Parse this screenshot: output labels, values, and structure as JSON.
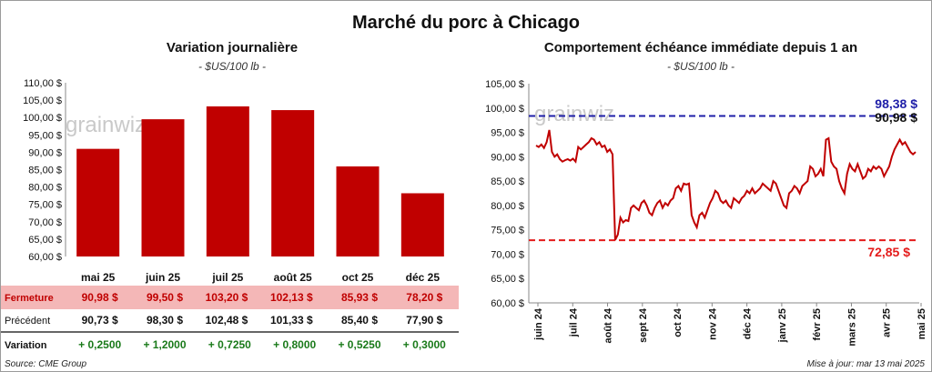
{
  "title": "Marché du porc à Chicago",
  "left": {
    "subtitle": "Variation journalière",
    "unit": "- $US/100 lb -",
    "watermark": "grainwiz",
    "table": {
      "fermeture_label": "Fermeture",
      "precedent_label": "Précédent",
      "variation_label": "Variation",
      "fermeture": [
        "90,98",
        "99,50",
        "103,20",
        "102,13",
        "85,93",
        "78,20"
      ],
      "precedent": [
        "90,73",
        "98,30",
        "102,48",
        "101,33",
        "85,40",
        "77,90"
      ],
      "variation": [
        "+ 0,2500",
        "+ 1,2000",
        "+ 0,7250",
        "+ 0,8000",
        "+ 0,5250",
        "+ 0,3000"
      ],
      "currency": "$"
    }
  },
  "right": {
    "subtitle": "Comportement échéance immédiate depuis 1 an",
    "unit": "- $US/100 lb -",
    "watermark": "grainwiz",
    "high_label": "98,38 $",
    "last_label": "90,98 $",
    "low_label": "72,85 $"
  },
  "footer": {
    "source": "Source: CME Group",
    "updated": "Mise à jour: mar 13 mai 2025"
  },
  "chart_data": [
    {
      "type": "bar",
      "categories": [
        "mai 25",
        "juin 25",
        "juil 25",
        "août 25",
        "oct 25",
        "déc 25"
      ],
      "values": [
        90.98,
        99.5,
        103.2,
        102.13,
        85.93,
        78.2
      ],
      "ylim": [
        60,
        110
      ],
      "yticks": [
        "60,00 $",
        "65,00 $",
        "70,00 $",
        "75,00 $",
        "80,00 $",
        "85,00 $",
        "90,00 $",
        "95,00 $",
        "100,00 $",
        "105,00 $",
        "110,00 $"
      ],
      "color": "#c00000"
    },
    {
      "type": "line",
      "ylim": [
        60,
        105
      ],
      "yticks": [
        "60,00 $",
        "65,00 $",
        "70,00 $",
        "75,00 $",
        "80,00 $",
        "85,00 $",
        "90,00 $",
        "95,00 $",
        "100,00 $",
        "105,00 $"
      ],
      "xticks": [
        "juin 24",
        "juil 24",
        "août 24",
        "sept 24",
        "oct 24",
        "nov 24",
        "déc 24",
        "janv 25",
        "févr 25",
        "mars 25",
        "avr 25",
        "mai 25"
      ],
      "color": "#c00000",
      "high": 98.38,
      "low": 72.85,
      "last": 90.98,
      "values": [
        92.3,
        92.0,
        92.5,
        91.8,
        93.0,
        95.5,
        91.0,
        90.0,
        90.5,
        89.5,
        89.0,
        89.3,
        89.5,
        89.2,
        89.6,
        89.0,
        92.0,
        91.5,
        92.0,
        92.5,
        93.0,
        93.8,
        93.5,
        92.5,
        93.0,
        92.0,
        92.3,
        91.0,
        91.5,
        90.5,
        72.9,
        74.0,
        77.5,
        76.5,
        77.0,
        76.8,
        79.5,
        80.0,
        79.5,
        79.0,
        80.5,
        81.0,
        80.0,
        78.5,
        78.0,
        79.5,
        80.5,
        81.0,
        79.5,
        80.5,
        80.0,
        81.0,
        81.5,
        83.5,
        84.0,
        83.0,
        84.5,
        84.3,
        84.5,
        78.0,
        76.5,
        75.5,
        78.0,
        78.5,
        77.5,
        79.0,
        80.5,
        81.5,
        83.0,
        82.5,
        81.0,
        80.5,
        81.0,
        80.0,
        79.5,
        81.5,
        81.0,
        80.5,
        81.5,
        82.0,
        83.0,
        82.5,
        83.5,
        82.5,
        83.0,
        83.5,
        84.5,
        84.0,
        83.5,
        83.0,
        85.0,
        84.5,
        83.0,
        81.5,
        80.0,
        79.5,
        82.5,
        83.0,
        84.0,
        83.5,
        82.5,
        84.0,
        84.5,
        85.0,
        88.0,
        87.5,
        86.0,
        86.5,
        87.5,
        86.0,
        93.5,
        93.8,
        89.0,
        88.0,
        87.5,
        85.0,
        83.5,
        82.5,
        86.5,
        88.5,
        87.5,
        87.0,
        88.5,
        87.0,
        85.5,
        86.0,
        87.5,
        87.0,
        88.0,
        87.5,
        88.0,
        87.5,
        86.0,
        87.0,
        88.0,
        90.0,
        91.5,
        92.5,
        93.5,
        92.5,
        93.0,
        92.0,
        91.0,
        90.5,
        90.98
      ]
    }
  ]
}
